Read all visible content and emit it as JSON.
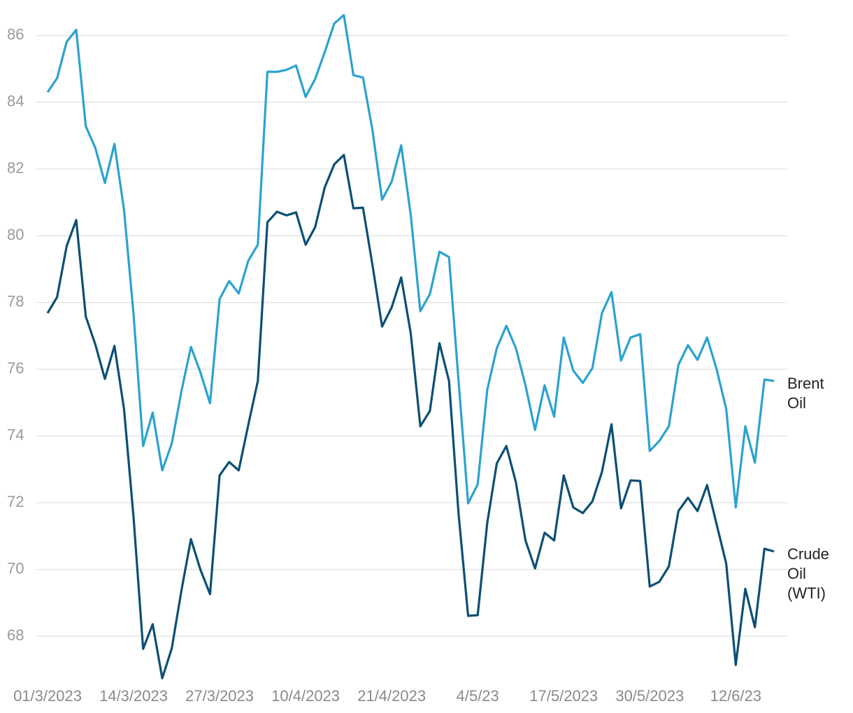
{
  "chart_data": {
    "type": "line",
    "categories": [
      "01/3/2023",
      null,
      null,
      null,
      null,
      null,
      null,
      null,
      null,
      "14/3/2023",
      null,
      null,
      null,
      null,
      null,
      null,
      null,
      null,
      "27/3/2023",
      null,
      null,
      null,
      null,
      null,
      null,
      null,
      null,
      "10/4/2023",
      null,
      null,
      null,
      null,
      null,
      null,
      null,
      null,
      "21/4/2023",
      null,
      null,
      null,
      null,
      null,
      null,
      null,
      null,
      "4/5/23",
      null,
      null,
      null,
      null,
      null,
      null,
      null,
      null,
      "17/5/2023",
      null,
      null,
      null,
      null,
      null,
      null,
      null,
      null,
      "30/5/2023",
      null,
      null,
      null,
      null,
      null,
      null,
      null,
      null,
      "12/6/23",
      null,
      null,
      null,
      null
    ],
    "series": [
      {
        "name": "Brent Oil",
        "color": "#2ba2cf",
        "values": [
          84.3,
          84.72,
          85.81,
          86.17,
          83.28,
          82.63,
          81.58,
          82.75,
          80.78,
          77.64,
          73.7,
          74.7,
          72.97,
          73.78,
          75.33,
          76.67,
          75.9,
          74.98,
          78.1,
          78.64,
          78.27,
          79.25,
          79.73,
          84.91,
          84.91,
          84.97,
          85.1,
          84.16,
          84.7,
          85.5,
          86.36,
          86.61,
          84.81,
          84.74,
          83.15,
          81.08,
          81.62,
          82.71,
          80.61,
          77.74,
          78.25,
          79.52,
          79.36,
          75.65,
          71.98,
          72.55,
          75.38,
          76.63,
          77.3,
          76.63,
          75.52,
          74.18,
          75.52,
          74.58,
          76.95,
          75.96,
          75.59,
          76.03,
          77.68,
          78.31,
          76.26,
          76.95,
          77.05,
          73.55,
          73.85,
          74.29,
          76.13,
          76.72,
          76.28,
          76.95,
          76.0,
          74.81,
          71.86,
          74.29,
          73.2,
          75.69,
          75.65
        ]
      },
      {
        "name": "Crude Oil (WTI)",
        "color": "#0c4f73",
        "values": [
          77.68,
          78.16,
          79.69,
          80.47,
          77.58,
          76.74,
          75.71,
          76.7,
          74.81,
          71.56,
          67.62,
          68.36,
          66.74,
          67.64,
          69.36,
          70.91,
          69.99,
          69.26,
          72.82,
          73.22,
          72.97,
          74.33,
          75.65,
          80.4,
          80.72,
          80.61,
          80.7,
          79.73,
          80.26,
          81.45,
          82.14,
          82.42,
          80.82,
          80.84,
          79.11,
          77.28,
          77.85,
          78.75,
          77.07,
          74.29,
          74.75,
          76.78,
          75.65,
          71.67,
          68.61,
          68.63,
          71.39,
          73.18,
          73.7,
          72.61,
          70.87,
          70.03,
          71.1,
          70.87,
          72.82,
          71.86,
          71.69,
          72.04,
          72.92,
          74.35,
          71.83,
          72.67,
          72.65,
          69.49,
          69.63,
          70.09,
          71.75,
          72.15,
          71.75,
          72.53,
          71.35,
          70.18,
          67.14,
          69.42,
          68.27,
          70.62,
          70.54
        ]
      }
    ],
    "ylim": [
      66.6,
      87
    ],
    "yticks": [
      68,
      70,
      72,
      74,
      76,
      78,
      80,
      82,
      84,
      86
    ],
    "grid": true
  }
}
